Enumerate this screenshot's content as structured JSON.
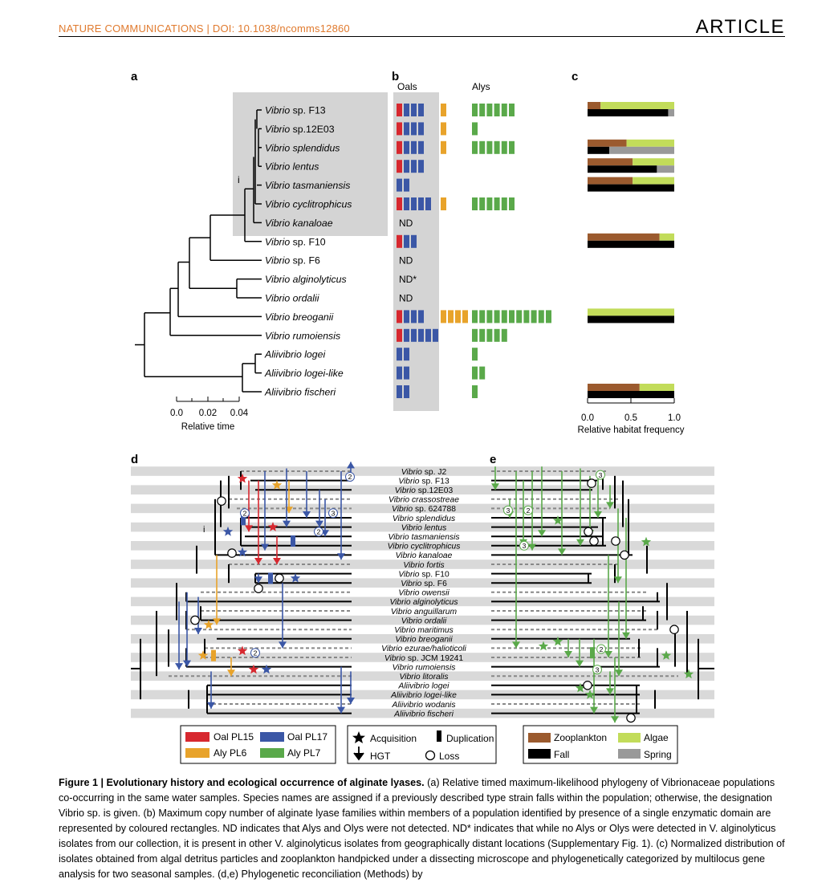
{
  "header": {
    "journal": "NATURE COMMUNICATIONS | DOI: 10.1038/ncomms12860",
    "type": "ARTICLE"
  },
  "panels": {
    "a": "a",
    "b": "b",
    "c": "c",
    "d": "d",
    "e": "e"
  },
  "clade_label": "i",
  "panel_b": {
    "col1": "Oals",
    "col2": "Alys"
  },
  "species_top": [
    {
      "genus": "Vibrio",
      "rest": " sp. F13",
      "italic_rest": false
    },
    {
      "genus": "Vibrio",
      "rest": " sp.12E03",
      "italic_rest": false
    },
    {
      "genus": "Vibrio splendidus",
      "rest": "",
      "italic_rest": true
    },
    {
      "genus": "Vibrio lentus",
      "rest": "",
      "italic_rest": true
    },
    {
      "genus": "Vibrio tasmaniensis",
      "rest": "",
      "italic_rest": true
    },
    {
      "genus": "Vibrio cyclitrophicus",
      "rest": "",
      "italic_rest": true
    },
    {
      "genus": "Vibrio kanaloae",
      "rest": "",
      "italic_rest": true
    },
    {
      "genus": "Vibrio",
      "rest": " sp. F10",
      "italic_rest": false
    },
    {
      "genus": "Vibrio",
      "rest": " sp. F6",
      "italic_rest": false
    },
    {
      "genus": "Vibrio alginolyticus",
      "rest": "",
      "italic_rest": true
    },
    {
      "genus": "Vibrio ordalii",
      "rest": "",
      "italic_rest": true
    },
    {
      "genus": "Vibrio breoganii",
      "rest": "",
      "italic_rest": true
    },
    {
      "genus": "Vibrio rumoiensis",
      "rest": "",
      "italic_rest": true
    },
    {
      "genus": "Aliivibrio logei",
      "rest": "",
      "italic_rest": true
    },
    {
      "genus": "Aliivibrio logei-like",
      "rest": "",
      "italic_rest": true
    },
    {
      "genus": "Aliivibrio fischeri",
      "rest": "",
      "italic_rest": true
    }
  ],
  "copy_numbers": [
    {
      "red": 1,
      "blue": 3,
      "yellow": 1,
      "green": 6,
      "nd": ""
    },
    {
      "red": 1,
      "blue": 3,
      "yellow": 1,
      "green": 1,
      "nd": ""
    },
    {
      "red": 1,
      "blue": 3,
      "yellow": 1,
      "green": 6,
      "nd": ""
    },
    {
      "red": 1,
      "blue": 3,
      "yellow": 0,
      "green": 0,
      "nd": ""
    },
    {
      "red": 0,
      "blue": 2,
      "yellow": 0,
      "green": 0,
      "nd": ""
    },
    {
      "red": 1,
      "blue": 4,
      "yellow": 1,
      "green": 6,
      "nd": ""
    },
    {
      "red": 0,
      "blue": 0,
      "yellow": 0,
      "green": 0,
      "nd": "ND"
    },
    {
      "red": 1,
      "blue": 2,
      "yellow": 0,
      "green": 0,
      "nd": ""
    },
    {
      "red": 0,
      "blue": 0,
      "yellow": 0,
      "green": 0,
      "nd": "ND"
    },
    {
      "red": 0,
      "blue": 0,
      "yellow": 0,
      "green": 0,
      "nd": "ND*"
    },
    {
      "red": 0,
      "blue": 0,
      "yellow": 0,
      "green": 0,
      "nd": "ND"
    },
    {
      "red": 1,
      "blue": 3,
      "yellow": 4,
      "green": 11,
      "nd": ""
    },
    {
      "red": 1,
      "blue": 5,
      "yellow": 0,
      "green": 5,
      "nd": ""
    },
    {
      "red": 0,
      "blue": 2,
      "yellow": 0,
      "green": 1,
      "nd": ""
    },
    {
      "red": 0,
      "blue": 2,
      "yellow": 0,
      "green": 2,
      "nd": ""
    },
    {
      "red": 0,
      "blue": 2,
      "yellow": 0,
      "green": 1,
      "nd": ""
    }
  ],
  "chart_data": {
    "type": "bar",
    "title": "",
    "xlabel": "Relative habitat frequency",
    "xlim": [
      0,
      1
    ],
    "xticks": [
      "0.0",
      "0.5",
      "1.0"
    ],
    "categories": [
      "Vibrio sp. F13",
      "Vibrio splendidus",
      "Vibrio lentus",
      "Vibrio tasmaniensis",
      "Vibrio sp. F10",
      "Vibrio breoganii",
      "Aliivibrio fischeri"
    ],
    "rows": [
      {
        "row": 0,
        "particle": [
          0.15,
          0.85
        ],
        "season": [
          0.93,
          0.07
        ]
      },
      {
        "row": 2,
        "particle": [
          0.45,
          0.55
        ],
        "season": [
          0.25,
          0.75
        ]
      },
      {
        "row": 3,
        "particle": [
          0.52,
          0.48
        ],
        "season": [
          0.8,
          0.2
        ]
      },
      {
        "row": 4,
        "particle": [
          0.52,
          0.48
        ],
        "season": [
          1.0,
          0.0
        ]
      },
      {
        "row": 7,
        "particle": [
          0.83,
          0.17
        ],
        "season": [
          1.0,
          0.0
        ]
      },
      {
        "row": 11,
        "particle": [
          0.0,
          1.0
        ],
        "season": [
          1.0,
          0.0
        ]
      },
      {
        "row": 15,
        "particle": [
          0.6,
          0.4
        ],
        "season": [
          1.0,
          0.0
        ]
      }
    ]
  },
  "axis_a": {
    "ticks": [
      "0.0",
      "0.02",
      "0.04"
    ],
    "label": "Relative time"
  },
  "species_bottom": [
    {
      "genus": "Vibrio",
      "rest": " sp. J2",
      "italic_rest": false
    },
    {
      "genus": "Vibrio",
      "rest": " sp. F13",
      "italic_rest": false
    },
    {
      "genus": "Vibrio",
      "rest": " sp.12E03",
      "italic_rest": false
    },
    {
      "genus": "Vibrio crassostreae",
      "rest": "",
      "italic_rest": true
    },
    {
      "genus": "Vibrio",
      "rest": " sp. 624788",
      "italic_rest": false
    },
    {
      "genus": "Vibrio splendidus",
      "rest": "",
      "italic_rest": true
    },
    {
      "genus": "Vibrio lentus",
      "rest": "",
      "italic_rest": true
    },
    {
      "genus": "Vibrio tasmaniensis",
      "rest": "",
      "italic_rest": true
    },
    {
      "genus": "Vibrio cyclitrophicus",
      "rest": "",
      "italic_rest": true
    },
    {
      "genus": "Vibrio kanaloae",
      "rest": "",
      "italic_rest": true
    },
    {
      "genus": "Vibrio fortis",
      "rest": "",
      "italic_rest": true
    },
    {
      "genus": "Vibrio",
      "rest": " sp. F10",
      "italic_rest": false
    },
    {
      "genus": "Vibrio",
      "rest": " sp. F6",
      "italic_rest": false
    },
    {
      "genus": "Vibrio owensii",
      "rest": "",
      "italic_rest": true
    },
    {
      "genus": "Vibrio alginolyticus",
      "rest": "",
      "italic_rest": true
    },
    {
      "genus": "Vibrio anguillarum",
      "rest": "",
      "italic_rest": true
    },
    {
      "genus": "Vibrio ordalii",
      "rest": "",
      "italic_rest": true
    },
    {
      "genus": "Vibrio maritimus",
      "rest": "",
      "italic_rest": true
    },
    {
      "genus": "Vibrio breoganii",
      "rest": "",
      "italic_rest": true
    },
    {
      "genus": "Vibrio ezurae/halioticoli",
      "rest": "",
      "italic_rest": true
    },
    {
      "genus": "Vibrio",
      "rest": " sp. JCM 19241",
      "italic_rest": false
    },
    {
      "genus": "Vibrio rumoiensis",
      "rest": "",
      "italic_rest": true
    },
    {
      "genus": "Vibrio litoralis",
      "rest": "",
      "italic_rest": true
    },
    {
      "genus": "Aliivibrio logei",
      "rest": "",
      "italic_rest": true
    },
    {
      "genus": "Aliivibrio logei-like",
      "rest": "",
      "italic_rest": true
    },
    {
      "genus": "Aliivibrio wodanis",
      "rest": "",
      "italic_rest": true
    },
    {
      "genus": "Aliivibrio fischeri",
      "rest": "",
      "italic_rest": true
    }
  ],
  "node_numbers": [
    "2",
    "3",
    "2",
    "2",
    "2",
    "3",
    "3",
    "2",
    "3",
    "2",
    "3"
  ],
  "legend_genes": [
    "Oal PL15",
    "Oal PL17",
    "Aly PL6",
    "Aly PL7"
  ],
  "legend_events": [
    "Acquisition",
    "Duplication",
    "HGT",
    "Loss"
  ],
  "legend_habitat": [
    "Zooplankton",
    "Algae",
    "Fall",
    "Spring"
  ],
  "colors": {
    "oal_pl15": "#d7282f",
    "oal_pl17": "#3b57a6",
    "aly_pl6": "#e8a32b",
    "aly_pl7": "#5aa94a",
    "zooplankton": "#9b5a2e",
    "algae": "#c2dc5a",
    "fall": "#000000",
    "spring": "#999999",
    "shade": "#d4d4d4",
    "stripe": "#d9d9d9",
    "header": "#e07a2e"
  },
  "caption": {
    "title": "Figure 1 | Evolutionary history and ecological occurrence of alginate lyases.",
    "text": " (a) Relative timed maximum-likelihood phylogeny of Vibrionaceae populations co-occurring in the same water samples. Species names are assigned if a previously described type strain falls within the population; otherwise, the designation Vibrio sp. is given. (b) Maximum copy number of alginate lyase families within members of a population identified by presence of a single enzymatic domain are represented by coloured rectangles. ND indicates that Alys and Olys were not detected. ND* indicates that while no Alys or Olys were detected in V. alginolyticus isolates from our collection, it is present in other V. alginolyticus isolates from geographically distant locations (Supplementary Fig. 1). (c) Normalized distribution of isolates obtained from algal detritus particles and zooplankton handpicked under a dissecting microscope and phylogenetically categorized by multilocus gene analysis for two seasonal samples. (d,e) Phylogenetic reconciliation (Methods) by"
  }
}
